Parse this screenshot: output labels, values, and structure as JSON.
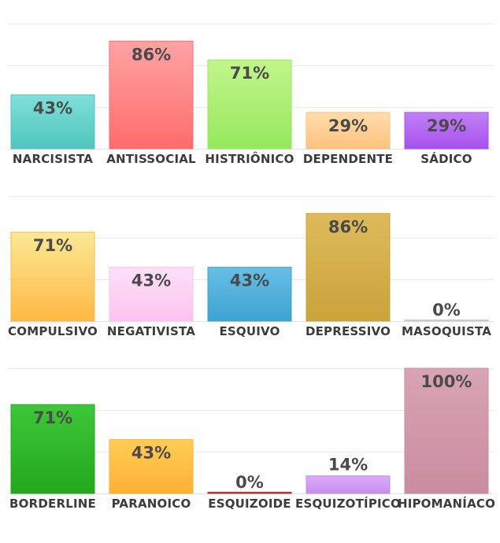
{
  "chart_data": [
    {
      "type": "bar",
      "categories": [
        "NARCISISTA",
        "ANTISSOCIAL",
        "HISTRIÔNICO",
        "DEPENDENTE",
        "SÁDICO"
      ],
      "values": [
        43,
        86,
        71,
        29,
        29
      ],
      "value_suffix": "%",
      "ylim": [
        0,
        100
      ],
      "grid": true,
      "colors": [
        [
          "#7fe0d8",
          "#4fc6be"
        ],
        [
          "#ffa3a3",
          "#ff6b6b"
        ],
        [
          "#c2f58c",
          "#96e85c"
        ],
        [
          "#ffdcaa",
          "#ffc27e"
        ],
        [
          "#c27ff6",
          "#a552ee"
        ]
      ]
    },
    {
      "type": "bar",
      "categories": [
        "COMPULSIVO",
        "NEGATIVISTA",
        "ESQUIVO",
        "DEPRESSIVO",
        "MASOQUISTA"
      ],
      "values": [
        71,
        43,
        43,
        86,
        0
      ],
      "value_suffix": "%",
      "ylim": [
        0,
        100
      ],
      "grid": true,
      "colors": [
        [
          "#fae894",
          "#ffb845"
        ],
        [
          "#fde0f8",
          "#fbc3f0"
        ],
        [
          "#66bfe6",
          "#3fa2d0"
        ],
        [
          "#deba5a",
          "#c9a33c"
        ],
        [
          "#d8d8d8",
          "#c8c8c8"
        ]
      ]
    },
    {
      "type": "bar",
      "categories": [
        "BORDERLINE",
        "PARANOICO",
        "ESQUIZOIDE",
        "ESQUIZOTÍPICO",
        "HIPOMANÍACO"
      ],
      "values": [
        71,
        43,
        0,
        14,
        100
      ],
      "value_suffix": "%",
      "ylim": [
        0,
        100
      ],
      "grid": true,
      "colors": [
        [
          "#3ec739",
          "#23a71d"
        ],
        [
          "#ffcc55",
          "#ffb133"
        ],
        [
          "#ff4444",
          "#dd2222"
        ],
        [
          "#ddaaf8",
          "#c68ef0"
        ],
        [
          "#d8a4b4",
          "#c98ca0"
        ]
      ]
    }
  ]
}
